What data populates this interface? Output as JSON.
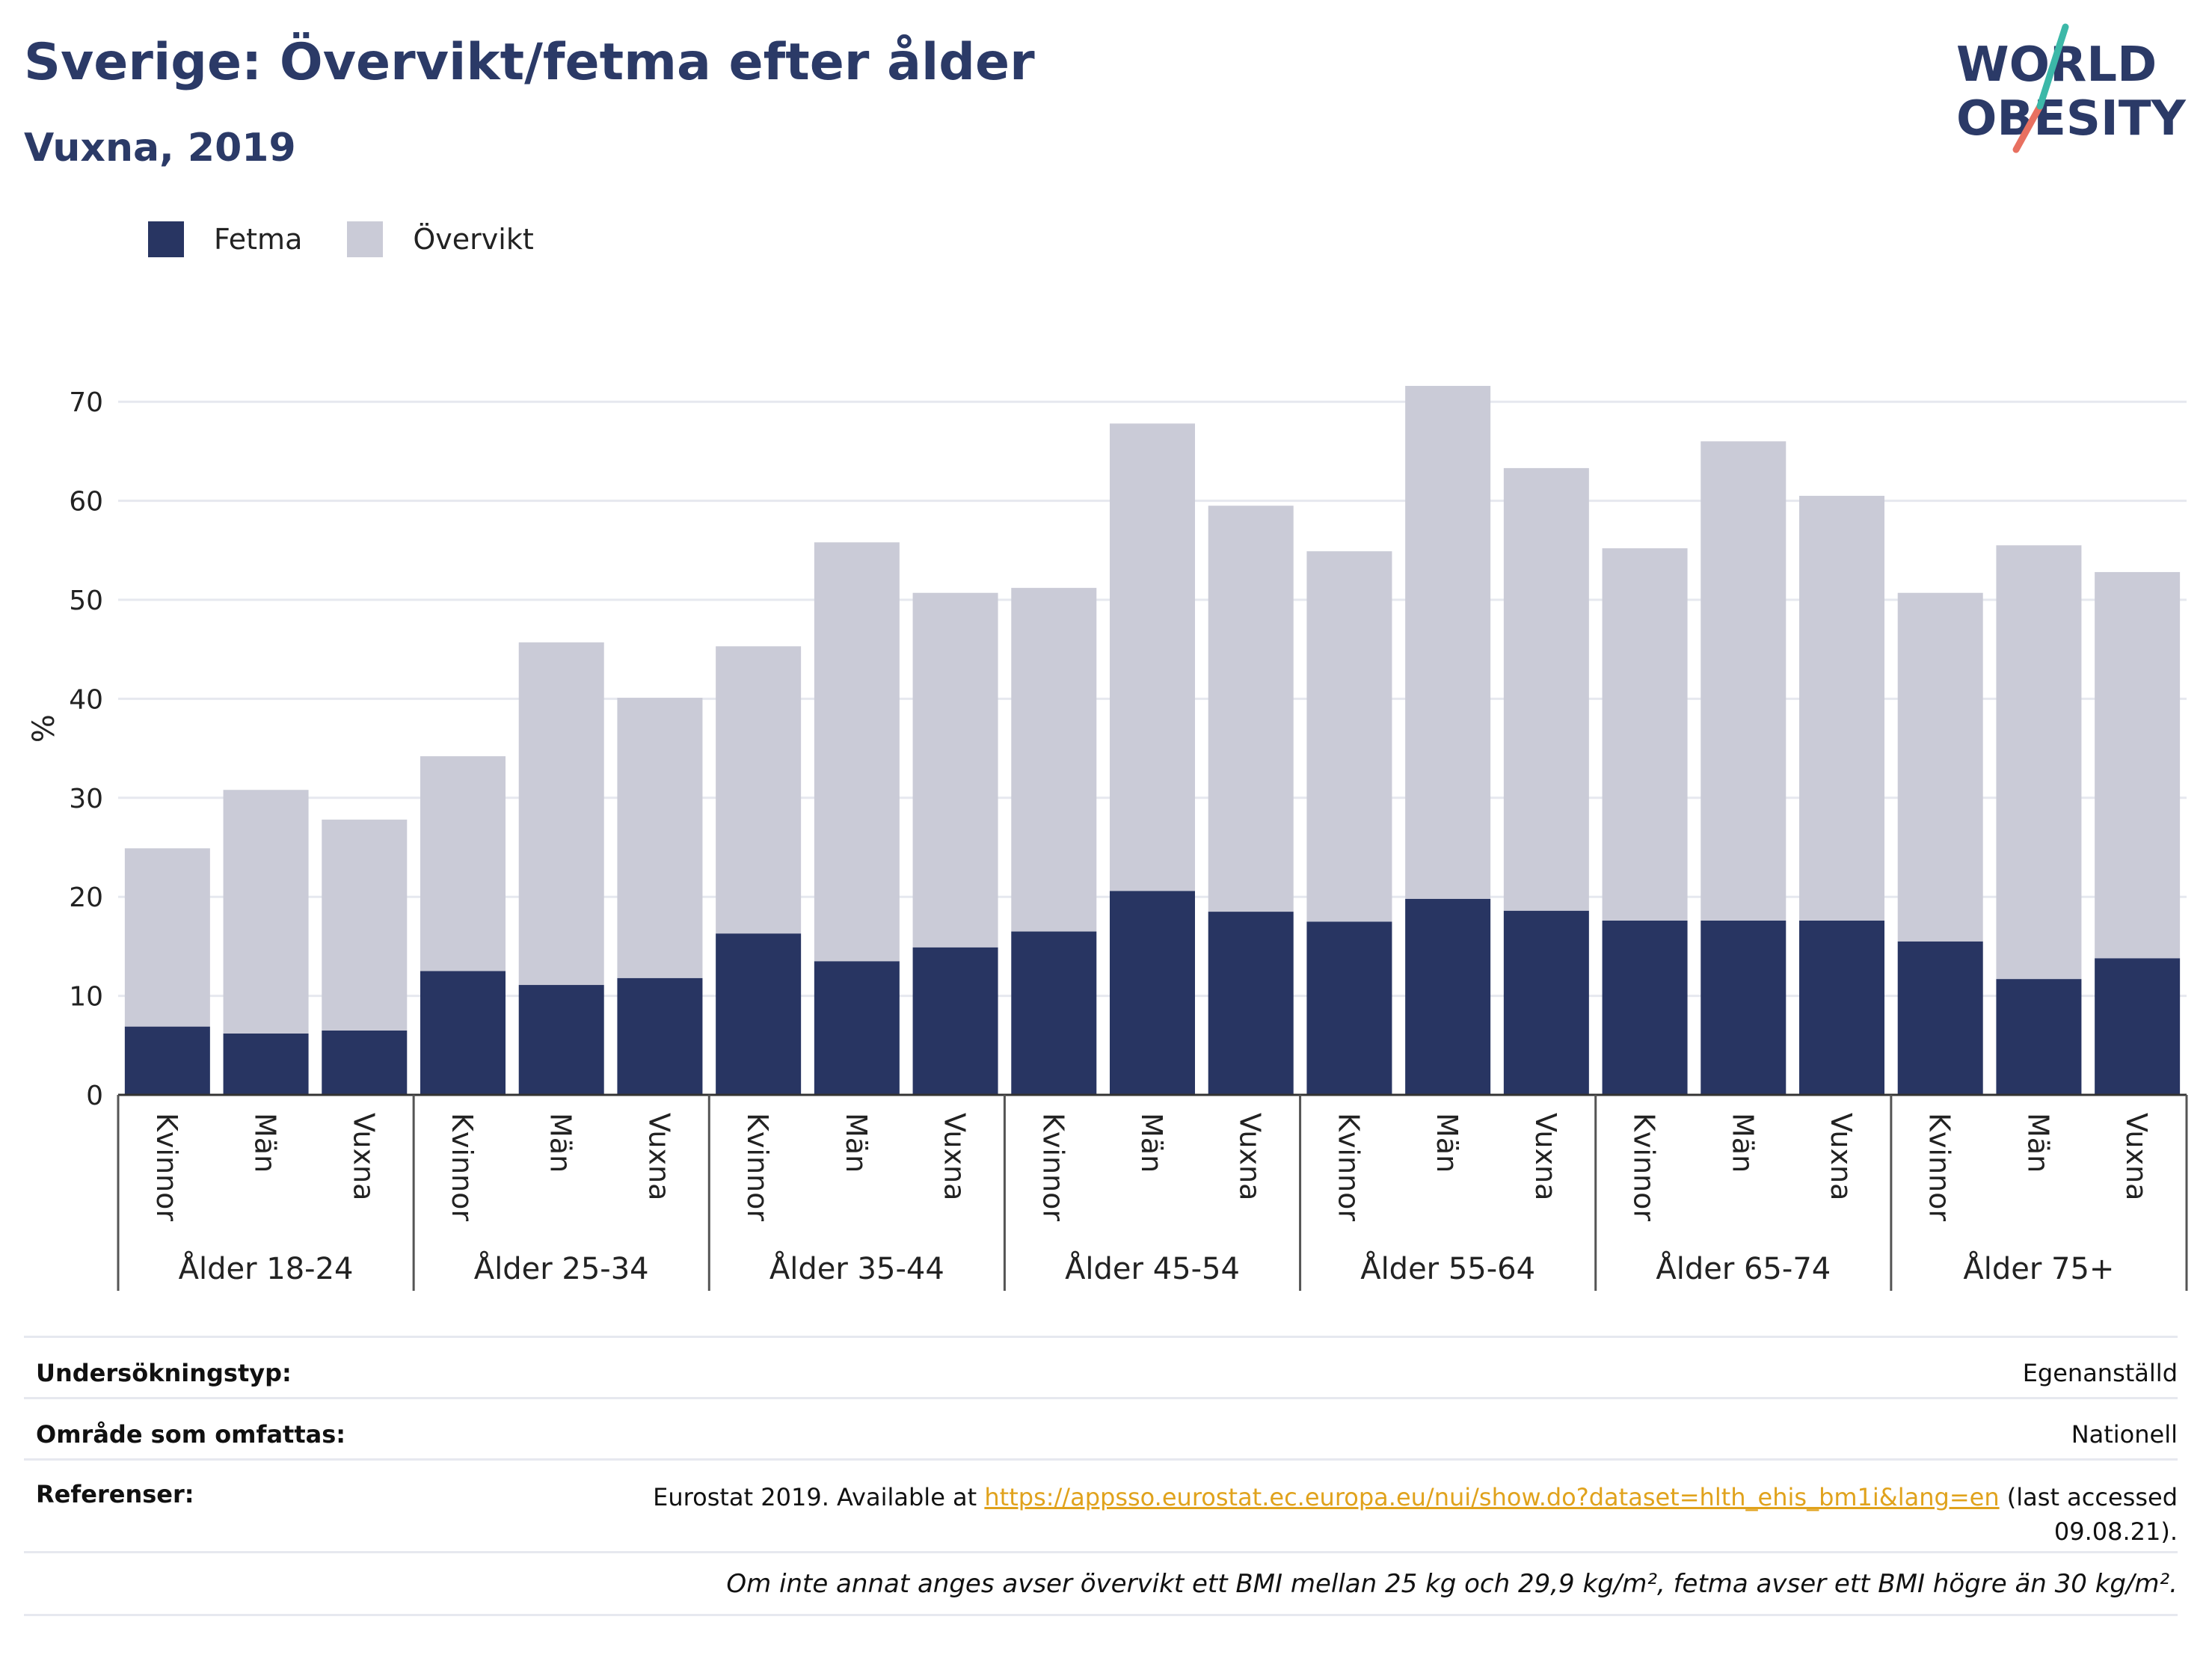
{
  "header": {
    "title": "Sverige: Övervikt/fetma efter ålder",
    "subtitle": "Vuxna, 2019"
  },
  "logo": {
    "line1": "WORLD",
    "line2": "OBESITY"
  },
  "legend": [
    {
      "label": "Fetma",
      "color": "#283562"
    },
    {
      "label": "Övervikt",
      "color": "#cacbd7"
    }
  ],
  "chart_data": {
    "type": "bar",
    "stacked": true,
    "ylabel": "%",
    "ylim": [
      0,
      75
    ],
    "yticks": [
      0,
      10,
      20,
      30,
      40,
      50,
      60,
      70
    ],
    "grid": true,
    "legend_position": "top-left",
    "groups": [
      "Ålder 18-24",
      "Ålder 25-34",
      "Ålder 35-44",
      "Ålder 45-54",
      "Ålder 55-64",
      "Ålder 65-74",
      "Ålder 75+"
    ],
    "subcategories": [
      "Kvinnor",
      "Män",
      "Vuxna"
    ],
    "series": [
      {
        "name": "Fetma",
        "color": "#283562",
        "values": [
          6.9,
          6.2,
          6.5,
          12.5,
          11.1,
          11.8,
          16.3,
          13.5,
          14.9,
          16.5,
          20.6,
          18.5,
          17.5,
          19.8,
          18.6,
          17.6,
          17.6,
          17.6,
          15.5,
          11.7,
          13.8
        ]
      },
      {
        "name": "Övervikt",
        "color": "#cacbd7",
        "values": [
          18.0,
          24.6,
          21.3,
          21.7,
          34.6,
          28.3,
          29.0,
          42.3,
          35.8,
          34.7,
          47.2,
          41.0,
          37.4,
          51.8,
          44.7,
          37.6,
          48.4,
          42.9,
          35.2,
          43.8,
          39.0
        ]
      }
    ]
  },
  "info": {
    "survey_label": "Undersökningstyp:",
    "survey_value": "Egenanställd",
    "area_label": "Område som omfattas:",
    "area_value": "Nationell",
    "ref_label": "Referenser:",
    "ref_prefix": "Eurostat 2019. Available at ",
    "ref_link": "https://appsso.eurostat.ec.europa.eu/nui/show.do?dataset=hlth_ehis_bm1i&lang=en",
    "ref_suffix": " (last accessed",
    "ref_date": "09.08.21).",
    "note": "Om inte annat anges avser övervikt ett BMI mellan 25 kg och 29,9 kg/m², fetma avser ett BMI högre än 30 kg/m²."
  }
}
